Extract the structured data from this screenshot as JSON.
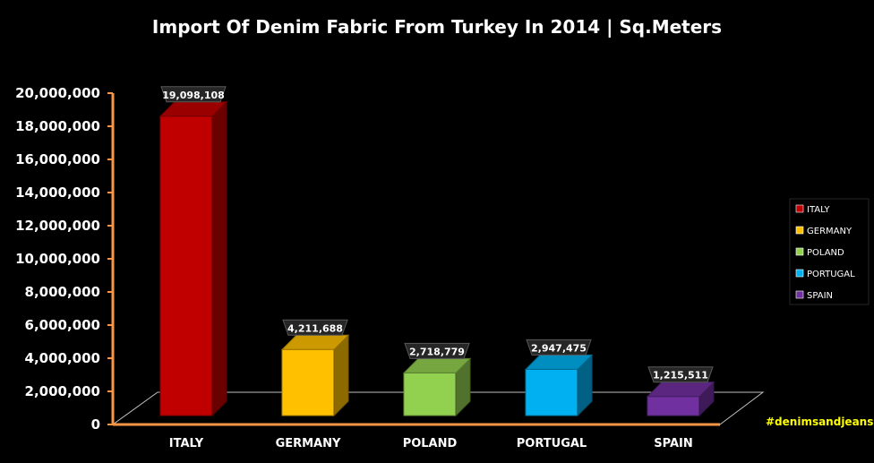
{
  "chart_data": {
    "type": "bar",
    "title": "Import Of Denim Fabric From Turkey In 2014 | Sq.Meters",
    "categories": [
      "ITALY",
      "GERMANY",
      "POLAND",
      "PORTUGAL",
      "SPAIN"
    ],
    "values": [
      19098108,
      4211688,
      2718779,
      2947475,
      1215511
    ],
    "data_labels": [
      "19,098,108",
      "4,211,688",
      "2,718,779",
      "2,947,475",
      "1,215,511"
    ],
    "colors": [
      "#c00000",
      "#ffc000",
      "#92d050",
      "#00b0f0",
      "#7030a0"
    ],
    "ylim": [
      0,
      20000000
    ],
    "y_ticks": [
      "0",
      "2,000,000",
      "4,000,000",
      "6,000,000",
      "8,000,000",
      "10,000,000",
      "12,000,000",
      "14,000,000",
      "16,000,000",
      "18,000,000",
      "20,000,000"
    ],
    "y_tick_values": [
      0,
      2000000,
      4000000,
      6000000,
      8000000,
      10000000,
      12000000,
      14000000,
      16000000,
      18000000,
      20000000
    ],
    "xlabel": "",
    "ylabel": "",
    "grid": false,
    "three_d": true,
    "legend": {
      "position": "right",
      "entries": [
        "ITALY",
        "GERMANY",
        "POLAND",
        "PORTUGAL",
        "SPAIN"
      ]
    },
    "axis_color": "#f79646",
    "watermark": "#denimsandjeans"
  }
}
